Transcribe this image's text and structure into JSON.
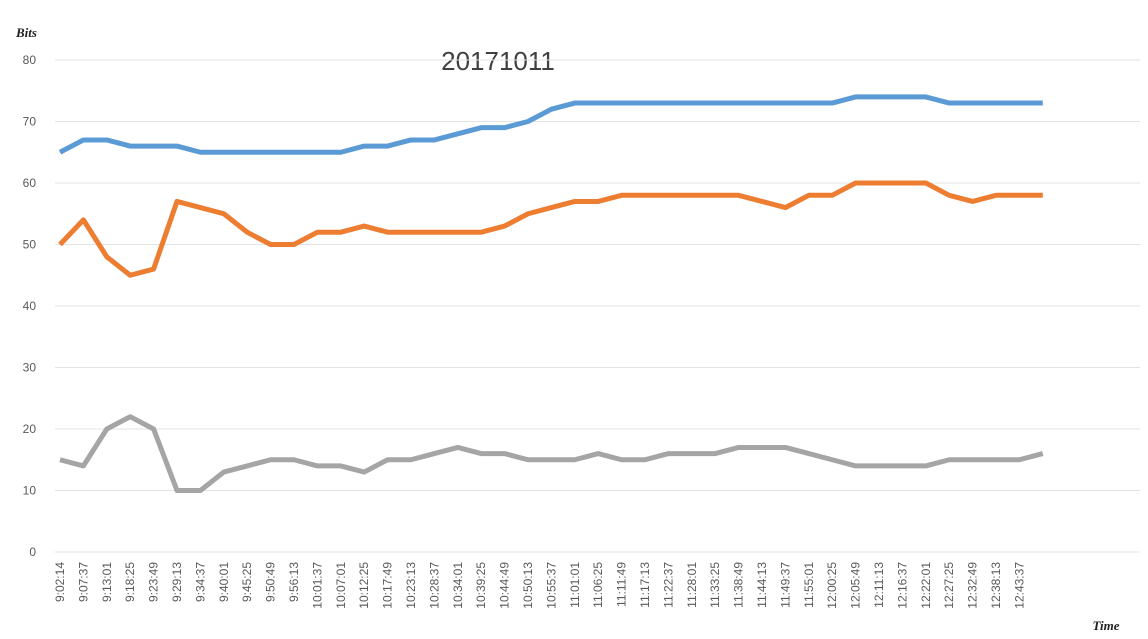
{
  "chart_data": {
    "type": "line",
    "title": "20171011",
    "y_label": "Bits",
    "x_label": "Time",
    "categories": [
      "9:02:14",
      "9:07:37",
      "9:13:01",
      "9:18:25",
      "9:23:49",
      "9:29:13",
      "9:34:37",
      "9:40:01",
      "9:45:25",
      "9:50:49",
      "9:56:13",
      "10:01:37",
      "10:07:01",
      "10:12:25",
      "10:17:49",
      "10:23:13",
      "10:28:37",
      "10:34:01",
      "10:39:25",
      "10:44:49",
      "10:50:13",
      "10:55:37",
      "11:01:01",
      "11:06:25",
      "11:11:49",
      "11:17:13",
      "11:22:37",
      "11:28:01",
      "11:33:25",
      "11:38:49",
      "11:44:13",
      "11:49:37",
      "11:55:01",
      "12:00:25",
      "12:05:49",
      "12:11:13",
      "12:16:37",
      "12:22:01",
      "12:27:25",
      "12:32:49",
      "12:38:13",
      "12:43:37",
      null
    ],
    "series": [
      {
        "color": "#5b9bd5",
        "values": [
          65,
          67,
          67,
          66,
          66,
          66,
          65,
          65,
          65,
          65,
          65,
          65,
          65,
          66,
          66,
          67,
          67,
          68,
          69,
          69,
          70,
          72,
          73,
          73,
          73,
          73,
          73,
          73,
          73,
          73,
          73,
          73,
          73,
          73,
          74,
          74,
          74,
          74,
          73,
          73,
          73,
          73,
          73
        ]
      },
      {
        "color": "#ed7d31",
        "values": [
          50,
          54,
          48,
          45,
          46,
          57,
          56,
          55,
          52,
          50,
          50,
          52,
          52,
          53,
          52,
          52,
          52,
          52,
          52,
          53,
          55,
          56,
          57,
          57,
          58,
          58,
          58,
          58,
          58,
          58,
          57,
          56,
          58,
          58,
          60,
          60,
          60,
          60,
          58,
          57,
          58,
          58,
          58
        ]
      },
      {
        "color": "#a5a5a5",
        "values": [
          15,
          14,
          20,
          22,
          20,
          10,
          10,
          13,
          14,
          15,
          15,
          14,
          14,
          13,
          15,
          15,
          16,
          17,
          16,
          16,
          15,
          15,
          15,
          16,
          15,
          15,
          16,
          16,
          16,
          17,
          17,
          17,
          16,
          15,
          14,
          14,
          14,
          14,
          15,
          15,
          15,
          15,
          16
        ]
      }
    ],
    "ylim": [
      0,
      80
    ],
    "yticks": [
      0,
      10,
      20,
      30,
      40,
      50,
      60,
      70,
      80
    ],
    "grid": true
  }
}
